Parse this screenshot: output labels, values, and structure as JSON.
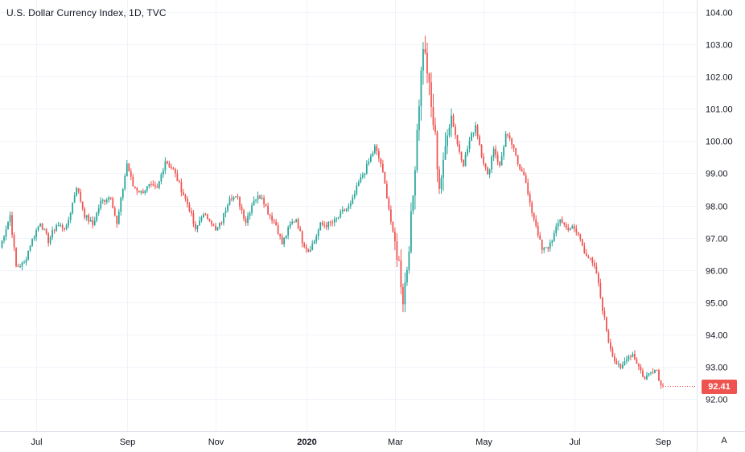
{
  "title": "U.S. Dollar Currency Index, 1D, TVC",
  "last_price": "92.41",
  "scale_mode": "A",
  "colors": {
    "up": "#26a69a",
    "down": "#ef5350",
    "grid": "#f0f3fa",
    "axis_line": "#e0e3eb"
  },
  "chart_data": {
    "type": "candlestick",
    "title": "U.S. Dollar Currency Index, 1D, TVC",
    "y_ticks": [
      "104.00",
      "103.00",
      "102.00",
      "101.00",
      "100.00",
      "99.00",
      "98.00",
      "97.00",
      "96.00",
      "95.00",
      "94.00",
      "93.00",
      "92.00"
    ],
    "ylim": [
      91.5,
      104.2
    ],
    "x_ticks": [
      {
        "label": "Jul",
        "idx": 18,
        "bold": false
      },
      {
        "label": "Sep",
        "idx": 63,
        "bold": false
      },
      {
        "label": "Nov",
        "idx": 107,
        "bold": false
      },
      {
        "label": "2020",
        "idx": 152,
        "bold": true
      },
      {
        "label": "Mar",
        "idx": 196,
        "bold": false
      },
      {
        "label": "May",
        "idx": 240,
        "bold": false
      },
      {
        "label": "Jul",
        "idx": 285,
        "bold": false
      },
      {
        "label": "Sep",
        "idx": 329,
        "bold": false
      }
    ],
    "legend": "none",
    "grid": true,
    "close_anchors": [
      [
        0,
        96.7
      ],
      [
        5,
        97.7
      ],
      [
        8,
        96.1
      ],
      [
        12,
        96.2
      ],
      [
        15,
        96.8
      ],
      [
        20,
        97.5
      ],
      [
        24,
        96.9
      ],
      [
        28,
        97.4
      ],
      [
        33,
        97.3
      ],
      [
        38,
        98.6
      ],
      [
        42,
        97.7
      ],
      [
        46,
        97.4
      ],
      [
        50,
        98.1
      ],
      [
        55,
        98.3
      ],
      [
        58,
        97.4
      ],
      [
        63,
        99.3
      ],
      [
        66,
        98.6
      ],
      [
        70,
        98.4
      ],
      [
        74,
        98.6
      ],
      [
        78,
        98.5
      ],
      [
        82,
        99.4
      ],
      [
        86,
        99.1
      ],
      [
        90,
        98.5
      ],
      [
        94,
        97.9
      ],
      [
        97,
        97.2
      ],
      [
        100,
        97.7
      ],
      [
        104,
        97.6
      ],
      [
        107,
        97.2
      ],
      [
        110,
        97.5
      ],
      [
        114,
        98.3
      ],
      [
        118,
        98.2
      ],
      [
        122,
        97.5
      ],
      [
        126,
        98.2
      ],
      [
        130,
        98.3
      ],
      [
        133,
        97.8
      ],
      [
        137,
        97.4
      ],
      [
        140,
        96.8
      ],
      [
        144,
        97.4
      ],
      [
        147,
        97.6
      ],
      [
        150,
        96.9
      ],
      [
        153,
        96.6
      ],
      [
        156,
        96.9
      ],
      [
        159,
        97.4
      ],
      [
        162,
        97.4
      ],
      [
        166,
        97.5
      ],
      [
        170,
        97.8
      ],
      [
        174,
        98.0
      ],
      [
        178,
        98.7
      ],
      [
        182,
        99.2
      ],
      [
        186,
        99.8
      ],
      [
        189,
        99.3
      ],
      [
        192,
        98.3
      ],
      [
        195,
        97.1
      ],
      [
        198,
        96.2
      ],
      [
        200,
        95.1
      ],
      [
        202,
        96.1
      ],
      [
        205,
        98.3
      ],
      [
        207,
        100.4
      ],
      [
        209,
        102.1
      ],
      [
        210,
        103.0
      ],
      [
        212,
        102.2
      ],
      [
        214,
        101.0
      ],
      [
        216,
        100.1
      ],
      [
        217,
        99.3
      ],
      [
        218,
        98.6
      ],
      [
        220,
        99.2
      ],
      [
        222,
        100.4
      ],
      [
        224,
        100.8
      ],
      [
        227,
        99.9
      ],
      [
        230,
        99.3
      ],
      [
        233,
        100.0
      ],
      [
        236,
        100.5
      ],
      [
        239,
        99.6
      ],
      [
        242,
        98.9
      ],
      [
        245,
        99.8
      ],
      [
        248,
        99.2
      ],
      [
        251,
        100.2
      ],
      [
        254,
        99.9
      ],
      [
        257,
        99.3
      ],
      [
        260,
        99.0
      ],
      [
        263,
        98.0
      ],
      [
        266,
        97.4
      ],
      [
        269,
        96.6
      ],
      [
        272,
        96.7
      ],
      [
        275,
        97.1
      ],
      [
        278,
        97.6
      ],
      [
        281,
        97.3
      ],
      [
        284,
        97.3
      ],
      [
        287,
        97.1
      ],
      [
        290,
        96.6
      ],
      [
        293,
        96.3
      ],
      [
        296,
        95.9
      ],
      [
        299,
        94.8
      ],
      [
        302,
        93.8
      ],
      [
        305,
        93.2
      ],
      [
        308,
        92.9
      ],
      [
        311,
        93.3
      ],
      [
        314,
        93.4
      ],
      [
        317,
        93.0
      ],
      [
        320,
        92.6
      ],
      [
        323,
        92.9
      ],
      [
        326,
        92.9
      ],
      [
        328,
        92.4
      ]
    ],
    "n_candles": 329
  }
}
